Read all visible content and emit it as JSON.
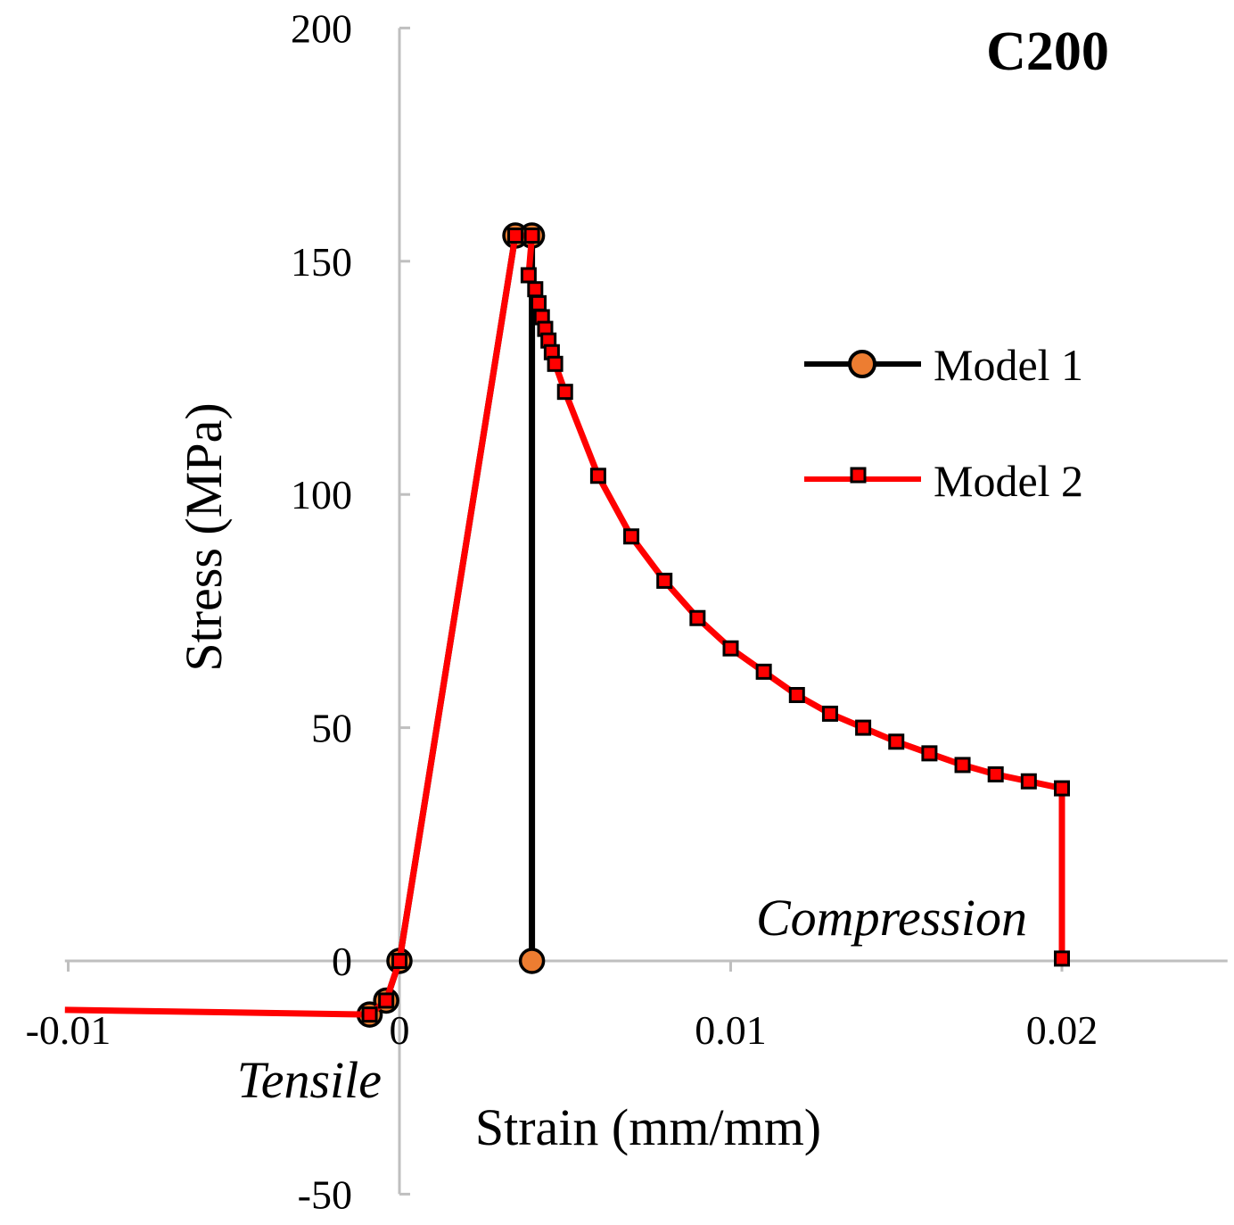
{
  "chart_data": {
    "type": "line",
    "title": "C200",
    "xlabel": "Strain (mm/mm)",
    "ylabel": "Stress (MPa)",
    "xlim": [
      -0.0101,
      0.025
    ],
    "ylim": [
      -50,
      200
    ],
    "x_ticks": [
      -0.01,
      0,
      0.01,
      0.02
    ],
    "x_tick_labels": [
      "-0.01",
      "0",
      "0.01",
      "0.02"
    ],
    "y_ticks": [
      -50,
      0,
      50,
      100,
      150,
      200
    ],
    "y_tick_labels": [
      "-50",
      "0",
      "50",
      "100",
      "150",
      "200"
    ],
    "annotations": [
      {
        "text": "Compression",
        "x": 0.0138,
        "y": 8
      },
      {
        "text": "Tensile",
        "x": -0.0034,
        "y": -27
      }
    ],
    "legend": {
      "placement": "right",
      "entries": [
        "Model 1",
        "Model 2"
      ]
    },
    "grid": false,
    "colors": {
      "model1_line": "#000000",
      "model1_marker": "#ED7D31",
      "model2_line": "#FF0000",
      "axis": "#BFBFBF"
    },
    "series": [
      {
        "name": "Model 1",
        "marker": "circle",
        "points": [
          [
            -0.0009,
            -11.5
          ],
          [
            -0.0004,
            -8.5
          ],
          [
            0,
            0
          ],
          [
            0.0035,
            155.5
          ],
          [
            0.004,
            155.5
          ],
          [
            0.004,
            0
          ]
        ]
      },
      {
        "name": "Model 2",
        "marker": "square",
        "points": [
          [
            -0.0101,
            -10.5
          ],
          [
            -0.0009,
            -11.5
          ],
          [
            -0.0004,
            -8.5
          ],
          [
            0,
            0
          ],
          [
            0.0035,
            155.5
          ],
          [
            0.004,
            155.5
          ],
          [
            0.0039,
            147
          ],
          [
            0.0041,
            144
          ],
          [
            0.0042,
            141
          ],
          [
            0.0043,
            138
          ],
          [
            0.0044,
            135.5
          ],
          [
            0.0045,
            133
          ],
          [
            0.0046,
            130.5
          ],
          [
            0.0047,
            128
          ],
          [
            0.005,
            122
          ],
          [
            0.006,
            104
          ],
          [
            0.007,
            91
          ],
          [
            0.008,
            81.5
          ],
          [
            0.009,
            73.5
          ],
          [
            0.01,
            67
          ],
          [
            0.011,
            62
          ],
          [
            0.012,
            57
          ],
          [
            0.013,
            53
          ],
          [
            0.014,
            50
          ],
          [
            0.015,
            47
          ],
          [
            0.016,
            44.5
          ],
          [
            0.017,
            42
          ],
          [
            0.018,
            40
          ],
          [
            0.019,
            38.5
          ],
          [
            0.02,
            37
          ],
          [
            0.02,
            0.5
          ]
        ]
      }
    ]
  }
}
